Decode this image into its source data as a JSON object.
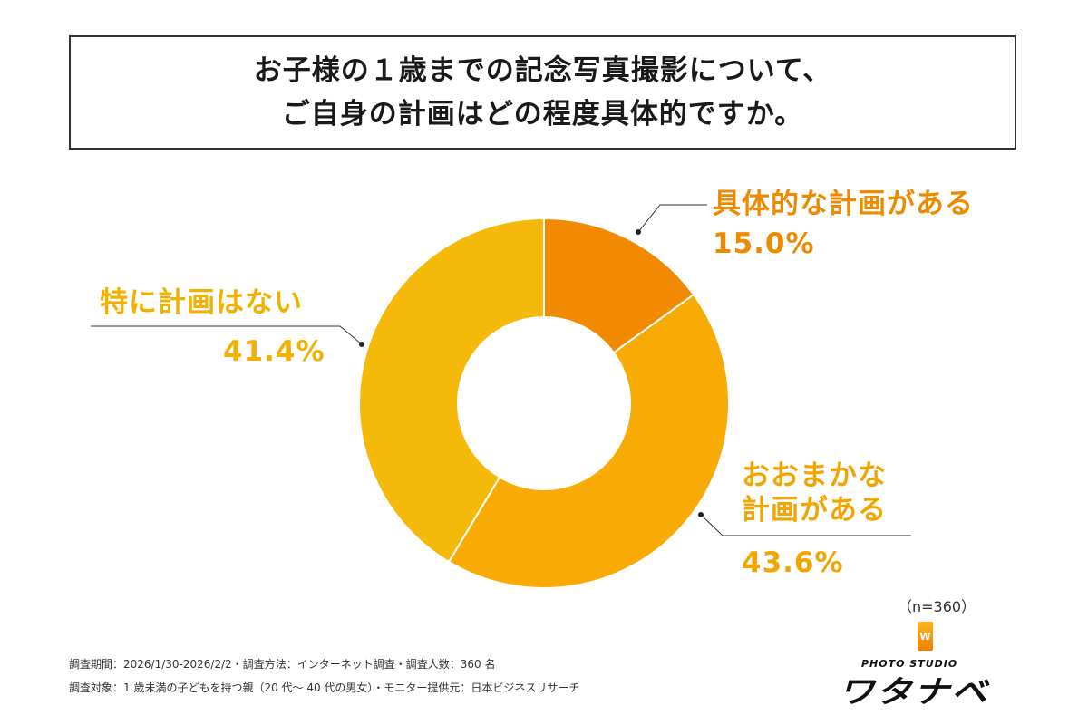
{
  "title": {
    "line1": "お子様の１歳までの記念写真撮影について、",
    "line2": "ご自身の計画はどの程度具体的ですか。"
  },
  "chart_data": {
    "type": "pie",
    "variant": "donut",
    "start": "top",
    "direction": "clockwise",
    "slices": [
      {
        "label": "具体的な計画がある",
        "value": 15.0,
        "display": "15.0%",
        "color": "#F18A00",
        "label_color": "#EE8A00"
      },
      {
        "label": "おおまかな計画がある",
        "label_lines": [
          "おおまかな",
          "計画がある"
        ],
        "value": 43.6,
        "display": "43.6%",
        "color": "#F8AA05",
        "label_color": "#F2A500"
      },
      {
        "label": "特に計画はない",
        "value": 41.4,
        "display": "41.4%",
        "color": "#F5B90A",
        "label_color": "#F2B000"
      }
    ]
  },
  "sample_size": "（n=360）",
  "footer": {
    "line1": "調査期間：2026/1/30-2026/2/2・調査方法：インターネット調査・調査人数：360 名",
    "line2": "調査対象：1 歳未満の子どもを持つ親（20 代～ 40 代の男女）・モニター提供元：日本ビジネスリサーチ"
  },
  "logo": {
    "icon_text": "W",
    "sub": "PHOTO STUDIO",
    "main": "ワタナベ"
  }
}
